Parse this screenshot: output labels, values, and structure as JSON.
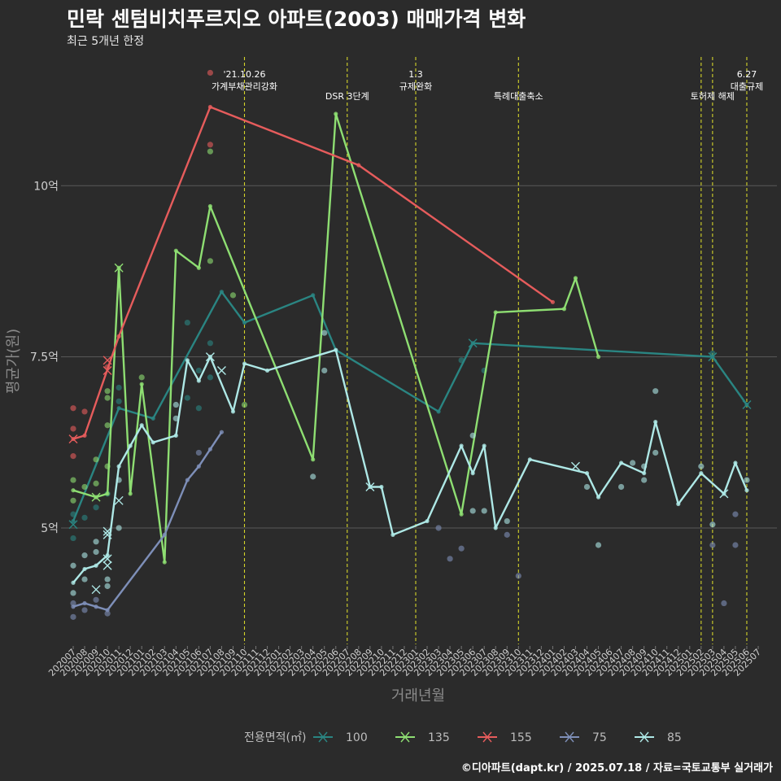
{
  "title": "민락 센텀비치푸르지오 아파트(2003) 매매가격 변화",
  "subtitle": "최근 5개년 한정",
  "caption": "©디아파트(dapt.kr) / 2025.07.18 / 자료=국토교통부 실거래가",
  "chart_data": {
    "type": "line",
    "xlabel": "거래년월",
    "ylabel": "평균가(원)",
    "x_ticks": [
      "202007",
      "202008",
      "202009",
      "202010",
      "202011",
      "202012",
      "202101",
      "202102",
      "202103",
      "202104",
      "202105",
      "202106",
      "202107",
      "202108",
      "202109",
      "202110",
      "202111",
      "202112",
      "202201",
      "202202",
      "202203",
      "202204",
      "202205",
      "202206",
      "202207",
      "202208",
      "202209",
      "202210",
      "202211",
      "202212",
      "202301",
      "202302",
      "202303",
      "202304",
      "202305",
      "202306",
      "202307",
      "202308",
      "202309",
      "202310",
      "202311",
      "202312",
      "202401",
      "202402",
      "202403",
      "202404",
      "202405",
      "202406",
      "202407",
      "202408",
      "202409",
      "202410",
      "202411",
      "202412",
      "202501",
      "202502",
      "202503",
      "202504",
      "202505",
      "202506",
      "202507"
    ],
    "y_ticks": [
      {
        "value": 5.0,
        "label": "5억"
      },
      {
        "value": 7.5,
        "label": "7.5억"
      },
      {
        "value": 10.0,
        "label": "10억"
      }
    ],
    "ylim": [
      3.3,
      12.0
    ],
    "grid": "horizontal",
    "legend": {
      "position": "bottom",
      "title": "전용면적(㎡)"
    },
    "events": [
      {
        "x": "202110",
        "label": "'21.10.26\n가계부채관리강화"
      },
      {
        "x": "202207",
        "label": "DSR 3단계"
      },
      {
        "x": "202301",
        "label": "1.3\n규제완화"
      },
      {
        "x": "202310",
        "label": "특례대출축소"
      },
      {
        "x": "202502",
        "label": ""
      },
      {
        "x": "202503",
        "label": "토허제 해제"
      },
      {
        "x": "202506",
        "label": "6.27\n대출규제"
      }
    ],
    "series": [
      {
        "name": "100",
        "color": "#2a8582",
        "points": [
          [
            "202007",
            5.1
          ],
          [
            "202011",
            6.75
          ],
          [
            "202102",
            6.6
          ],
          [
            "202108",
            8.45
          ],
          [
            "202110",
            8.0
          ],
          [
            "202204",
            8.4
          ],
          [
            "202206",
            7.6
          ],
          [
            "202303",
            6.7
          ],
          [
            "202306",
            7.7
          ],
          [
            "202503",
            7.5
          ],
          [
            "202506",
            6.8
          ]
        ],
        "crosses": [
          [
            "202007",
            5.05
          ],
          [
            "202306",
            7.7
          ],
          [
            "202503",
            7.5
          ],
          [
            "202506",
            6.8
          ]
        ],
        "dots": [
          [
            "202007",
            4.85
          ],
          [
            "202007",
            5.2
          ],
          [
            "202008",
            5.15
          ],
          [
            "202009",
            5.3
          ],
          [
            "202010",
            5.5
          ],
          [
            "202011",
            7.05
          ],
          [
            "202011",
            6.85
          ],
          [
            "202106",
            7.3
          ],
          [
            "202106",
            6.75
          ],
          [
            "202105",
            8.0
          ],
          [
            "202105",
            6.9
          ],
          [
            "202107",
            7.7
          ],
          [
            "202107",
            7.2
          ],
          [
            "202305",
            7.45
          ],
          [
            "202307",
            7.3
          ],
          [
            "202503",
            7.55
          ]
        ]
      },
      {
        "name": "135",
        "color": "#8ede72",
        "points": [
          [
            "202007",
            5.55
          ],
          [
            "202009",
            5.45
          ],
          [
            "202010",
            5.5
          ],
          [
            "202011",
            8.8
          ],
          [
            "202012",
            5.5
          ],
          [
            "202101",
            7.1
          ],
          [
            "202103",
            4.5
          ],
          [
            "202104",
            9.05
          ],
          [
            "202106",
            8.8
          ],
          [
            "202107",
            9.7
          ],
          [
            "202204",
            6.0
          ],
          [
            "202206",
            11.05
          ],
          [
            "202305",
            5.2
          ],
          [
            "202308",
            8.15
          ],
          [
            "202402",
            8.2
          ],
          [
            "202403",
            8.65
          ],
          [
            "202405",
            7.5
          ]
        ],
        "crosses": [
          [
            "202009",
            5.45
          ],
          [
            "202011",
            8.8
          ]
        ],
        "dots": [
          [
            "202007",
            5.7
          ],
          [
            "202007",
            5.4
          ],
          [
            "202008",
            5.6
          ],
          [
            "202009",
            5.65
          ],
          [
            "202009",
            6.0
          ],
          [
            "202010",
            5.9
          ],
          [
            "202010",
            6.5
          ],
          [
            "202010",
            6.9
          ],
          [
            "202010",
            7.0
          ],
          [
            "202101",
            7.2
          ],
          [
            "202107",
            8.9
          ],
          [
            "202107",
            10.5
          ],
          [
            "202109",
            8.4
          ],
          [
            "202110",
            6.8
          ]
        ]
      },
      {
        "name": "155",
        "color": "#e65c5c",
        "points": [
          [
            "202007",
            6.3
          ],
          [
            "202008",
            6.35
          ],
          [
            "202011",
            7.8
          ],
          [
            "202107",
            11.15
          ],
          [
            "202208",
            10.3
          ],
          [
            "202401",
            8.3
          ]
        ],
        "crosses": [
          [
            "202007",
            6.3
          ],
          [
            "202010",
            7.3
          ],
          [
            "202010",
            7.45
          ]
        ],
        "dots": [
          [
            "202007",
            6.75
          ],
          [
            "202007",
            6.45
          ],
          [
            "202007",
            6.05
          ],
          [
            "202008",
            6.7
          ],
          [
            "202010",
            7.35
          ],
          [
            "202107",
            11.65
          ],
          [
            "202107",
            10.6
          ]
        ]
      },
      {
        "name": "75",
        "color": "#7e8fb8",
        "points": [
          [
            "202007",
            3.85
          ],
          [
            "202008",
            3.9
          ],
          [
            "202009",
            3.85
          ],
          [
            "202010",
            3.8
          ],
          [
            "202103",
            4.9
          ],
          [
            "202105",
            5.7
          ],
          [
            "202106",
            5.9
          ],
          [
            "202107",
            6.15
          ],
          [
            "202108",
            6.4
          ]
        ],
        "crosses": [],
        "dots": [
          [
            "202007",
            3.7
          ],
          [
            "202007",
            3.9
          ],
          [
            "202008",
            3.8
          ],
          [
            "202009",
            3.95
          ],
          [
            "202010",
            3.75
          ],
          [
            "202106",
            6.1
          ],
          [
            "202303",
            5.0
          ],
          [
            "202304",
            4.55
          ],
          [
            "202305",
            4.7
          ],
          [
            "202309",
            4.9
          ],
          [
            "202310",
            4.3
          ],
          [
            "202503",
            4.75
          ],
          [
            "202504",
            3.9
          ],
          [
            "202505",
            4.75
          ],
          [
            "202505",
            5.2
          ]
        ]
      },
      {
        "name": "85",
        "color": "#aee8e6",
        "points": [
          [
            "202007",
            4.2
          ],
          [
            "202008",
            4.4
          ],
          [
            "202009",
            4.45
          ],
          [
            "202010",
            4.6
          ],
          [
            "202011",
            5.9
          ],
          [
            "202012",
            6.2
          ],
          [
            "202101",
            6.5
          ],
          [
            "202102",
            6.25
          ],
          [
            "202104",
            6.35
          ],
          [
            "202105",
            7.45
          ],
          [
            "202106",
            7.15
          ],
          [
            "202107",
            7.5
          ],
          [
            "202109",
            6.7
          ],
          [
            "202110",
            7.4
          ],
          [
            "202112",
            7.3
          ],
          [
            "202206",
            7.6
          ],
          [
            "202209",
            5.6
          ],
          [
            "202210",
            5.6
          ],
          [
            "202211",
            4.9
          ],
          [
            "202302",
            5.1
          ],
          [
            "202305",
            6.2
          ],
          [
            "202306",
            5.8
          ],
          [
            "202307",
            6.2
          ],
          [
            "202308",
            5.0
          ],
          [
            "202311",
            6.0
          ],
          [
            "202404",
            5.8
          ],
          [
            "202405",
            5.45
          ],
          [
            "202407",
            5.95
          ],
          [
            "202409",
            5.8
          ],
          [
            "202410",
            6.55
          ],
          [
            "202412",
            5.35
          ],
          [
            "202502",
            5.8
          ],
          [
            "202504",
            5.5
          ],
          [
            "202505",
            5.95
          ],
          [
            "202506",
            5.55
          ]
        ],
        "crosses": [
          [
            "202009",
            4.1
          ],
          [
            "202010",
            4.45
          ],
          [
            "202010",
            4.9
          ],
          [
            "202010",
            4.95
          ],
          [
            "202010",
            4.55
          ],
          [
            "202011",
            5.4
          ],
          [
            "202107",
            7.5
          ],
          [
            "202108",
            7.3
          ],
          [
            "202209",
            5.6
          ],
          [
            "202403",
            5.9
          ],
          [
            "202504",
            5.5
          ]
        ],
        "dots": [
          [
            "202007",
            4.45
          ],
          [
            "202007",
            4.05
          ],
          [
            "202008",
            4.6
          ],
          [
            "202008",
            4.25
          ],
          [
            "202009",
            4.65
          ],
          [
            "202009",
            4.8
          ],
          [
            "202010",
            4.15
          ],
          [
            "202010",
            4.25
          ],
          [
            "202011",
            5.0
          ],
          [
            "202011",
            5.7
          ],
          [
            "202104",
            6.8
          ],
          [
            "202104",
            6.6
          ],
          [
            "202204",
            5.75
          ],
          [
            "202205",
            7.3
          ],
          [
            "202205",
            7.85
          ],
          [
            "202306",
            6.35
          ],
          [
            "202306",
            5.25
          ],
          [
            "202307",
            5.25
          ],
          [
            "202309",
            5.1
          ],
          [
            "202404",
            5.6
          ],
          [
            "202407",
            5.6
          ],
          [
            "202405",
            4.75
          ],
          [
            "202408",
            5.95
          ],
          [
            "202409",
            5.9
          ],
          [
            "202409",
            5.7
          ],
          [
            "202410",
            7.0
          ],
          [
            "202410",
            6.1
          ],
          [
            "202502",
            5.9
          ],
          [
            "202503",
            5.05
          ],
          [
            "202506",
            5.7
          ]
        ]
      }
    ]
  }
}
